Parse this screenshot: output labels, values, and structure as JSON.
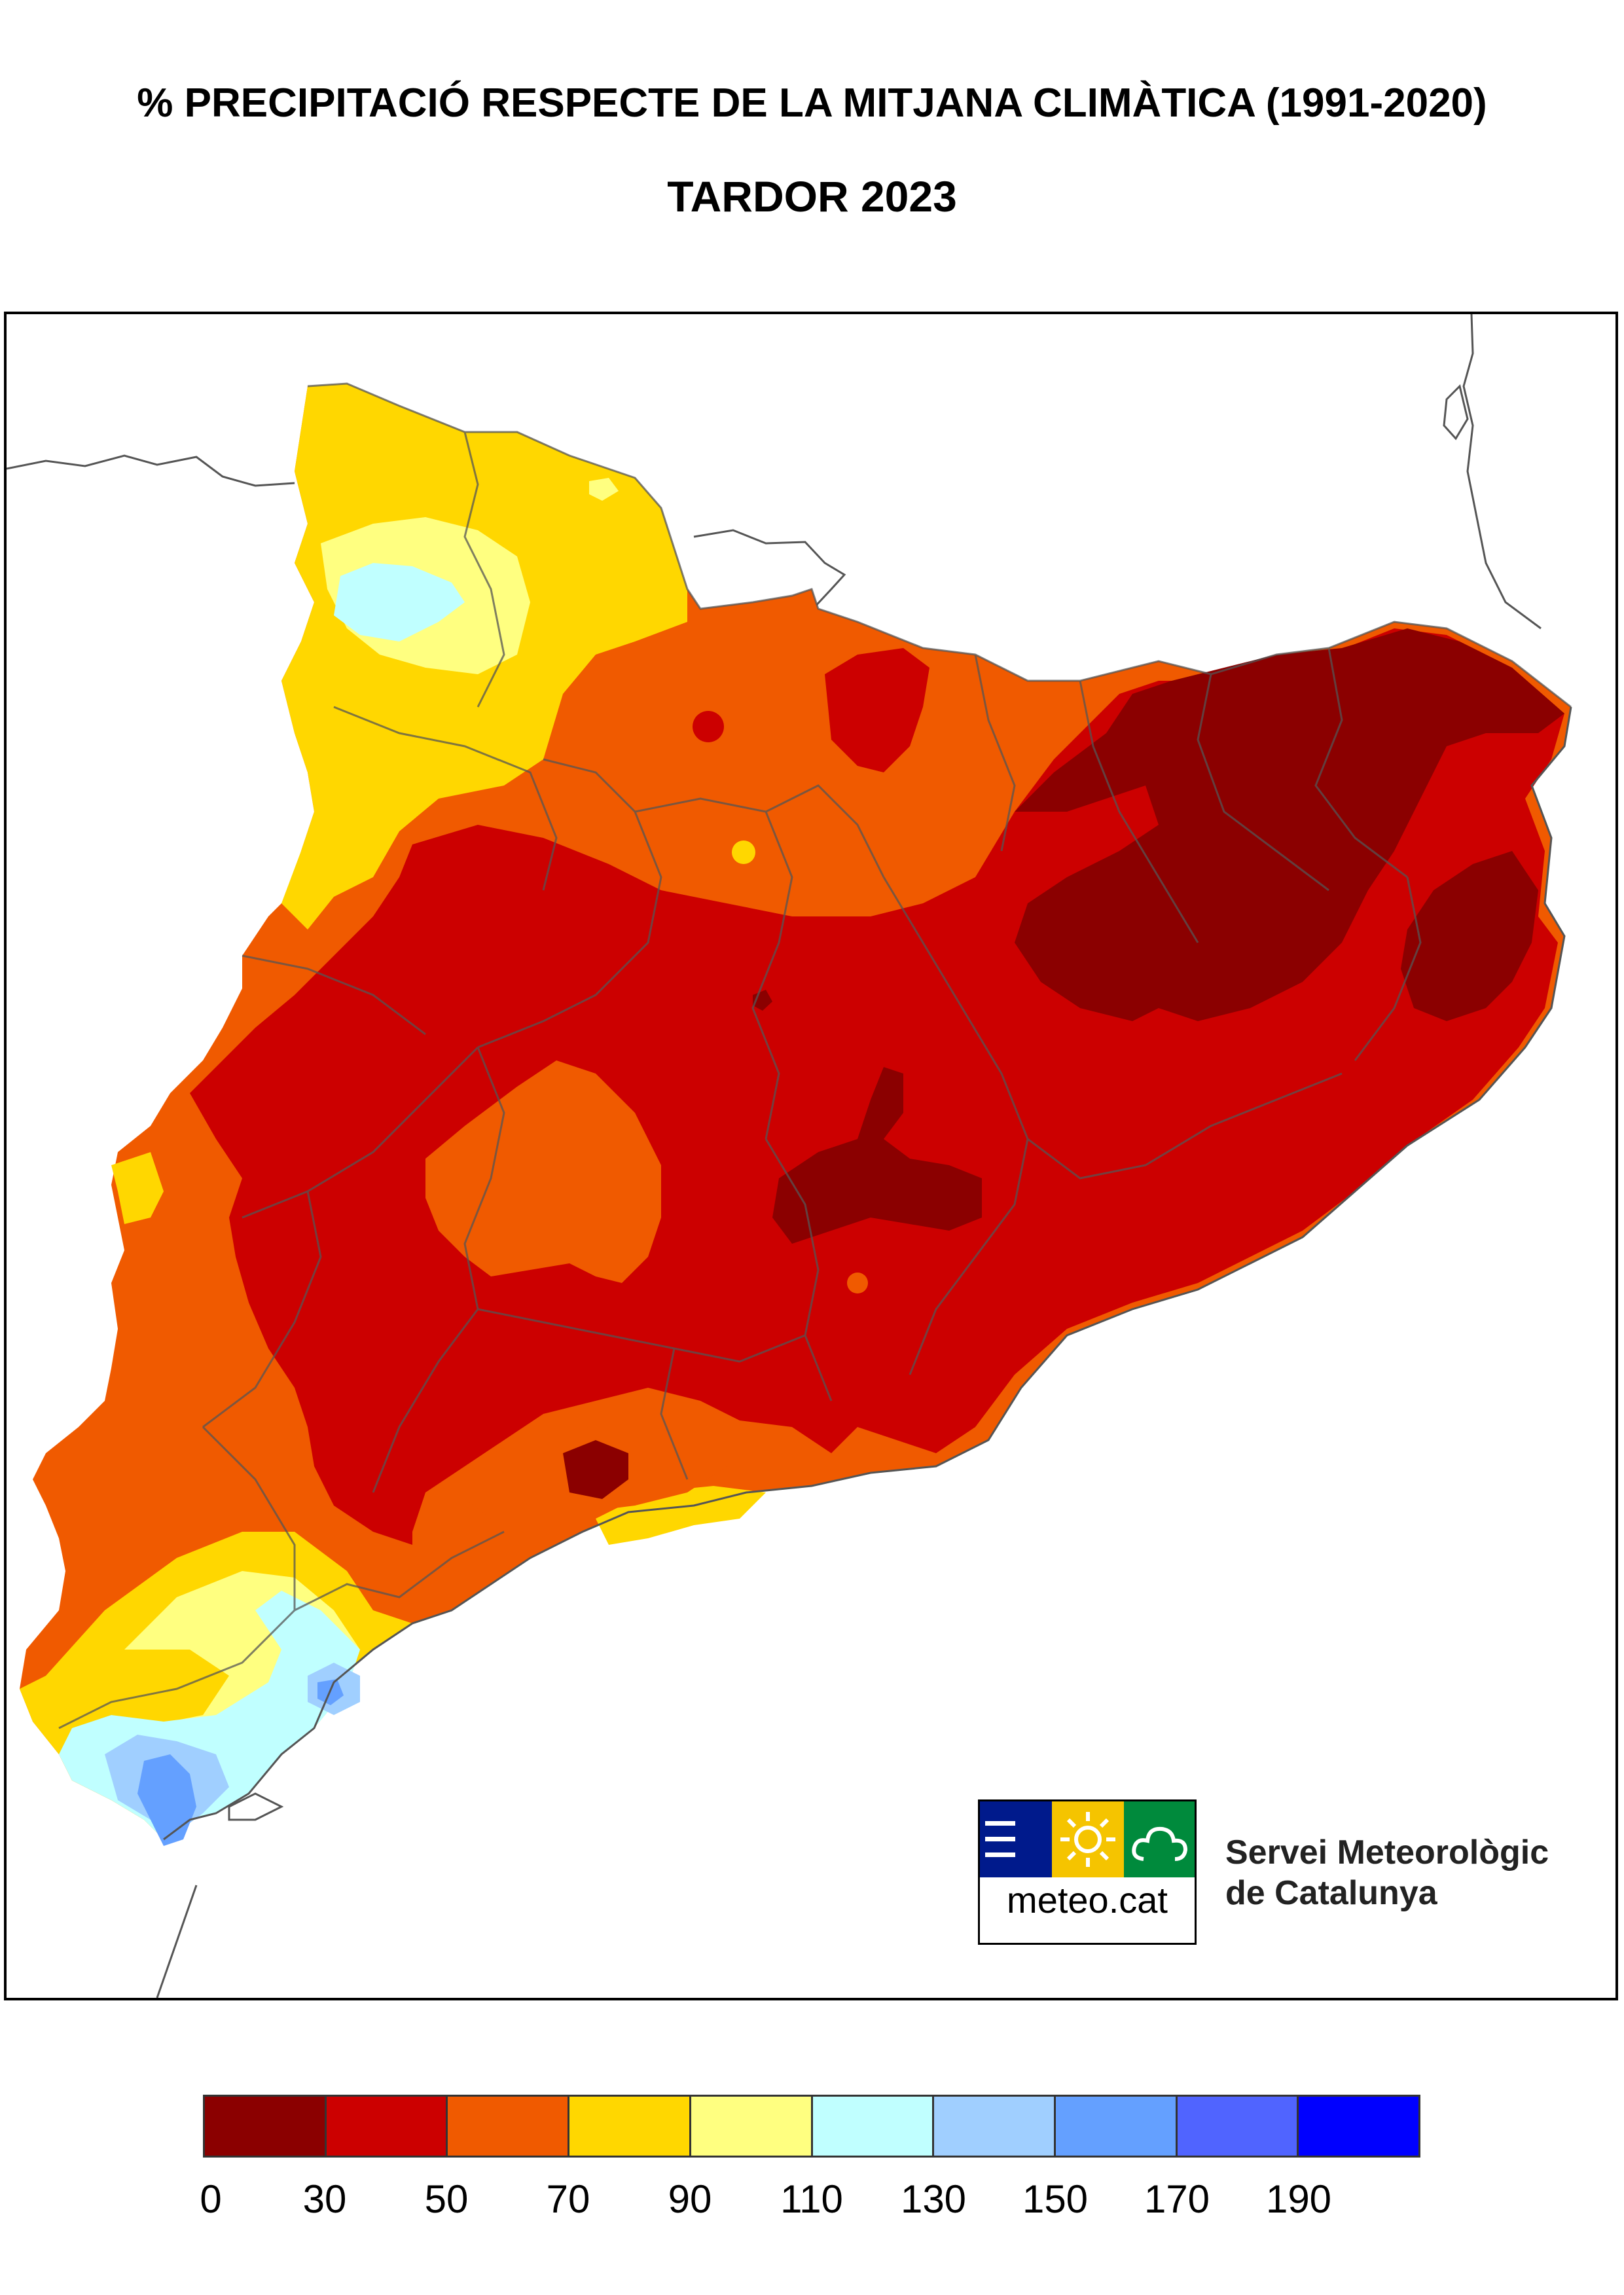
{
  "title_line1": "% PRECIPITACIÓ RESPECTE DE LA MITJANA CLIMÀTICA (1991-2020)",
  "title_line2": "TARDOR 2023",
  "organization": {
    "line1": "Servei Meteorològic",
    "line2": "de Catalunya",
    "logo_text": "meteo.cat",
    "logo_icons": [
      "bars-icon",
      "sun-icon",
      "cloud-icon"
    ],
    "logo_colors": {
      "navy": "#001a8c",
      "yellow": "#f5c400",
      "green": "#008a3c"
    }
  },
  "legend": {
    "ticks": [
      "0",
      "30",
      "50",
      "70",
      "90",
      "110",
      "130",
      "150",
      "170",
      "190"
    ],
    "colors": [
      "#8b0000",
      "#cc0000",
      "#f05a00",
      "#ffd700",
      "#ffff80",
      "#c0ffff",
      "#a0cfff",
      "#64a0ff",
      "#5064ff",
      "#0000ff"
    ]
  },
  "map": {
    "region": "Catalunya",
    "dominant_classes": [
      "30-50",
      "0-30",
      "50-70"
    ]
  }
}
